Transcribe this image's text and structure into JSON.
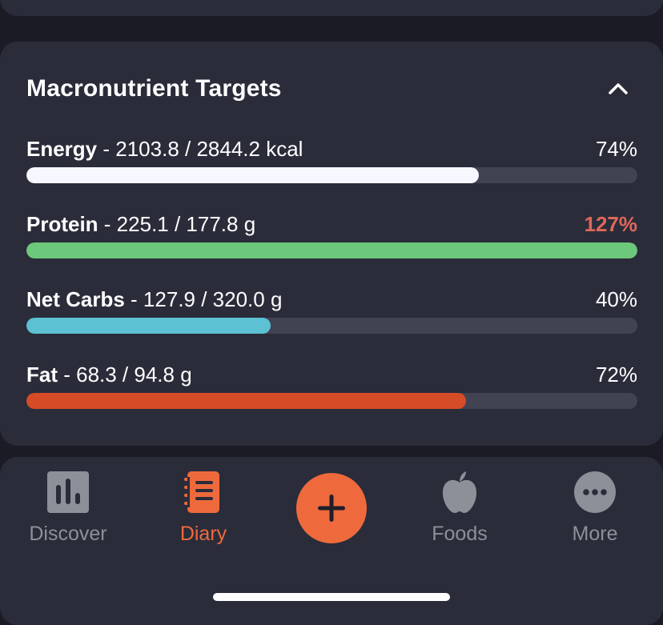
{
  "card": {
    "title": "Macronutrient Targets",
    "collapse_icon": "chevron-up-icon"
  },
  "macros": [
    {
      "name": "Energy",
      "detail": " - 2103.8 / 2844.2 kcal",
      "percent": "74%",
      "fill_fraction": 0.74,
      "color": "#f7f8ff",
      "over_target": false
    },
    {
      "name": "Protein",
      "detail": " - 225.1 / 177.8 g",
      "percent": "127%",
      "fill_fraction": 1.0,
      "color": "#6cc87a",
      "over_target": true
    },
    {
      "name": "Net Carbs",
      "detail": " - 127.9 / 320.0 g",
      "percent": "40%",
      "fill_fraction": 0.4,
      "color": "#5bc1d3",
      "over_target": false
    },
    {
      "name": "Fat",
      "detail": " - 68.3 / 94.8 g",
      "percent": "72%",
      "fill_fraction": 0.72,
      "color": "#d64c27",
      "over_target": false
    }
  ],
  "nav": {
    "items": [
      {
        "label": "Discover",
        "icon": "bar-chart-icon",
        "active": false
      },
      {
        "label": "Diary",
        "icon": "notebook-icon",
        "active": true
      },
      {
        "label": "Foods",
        "icon": "apple-icon",
        "active": false
      },
      {
        "label": "More",
        "icon": "more-dots-icon",
        "active": false
      }
    ],
    "add_icon": "plus-icon"
  },
  "colors": {
    "accent": "#ee6a3c",
    "over_target": "#e0675a",
    "inactive": "#8d8f99"
  }
}
